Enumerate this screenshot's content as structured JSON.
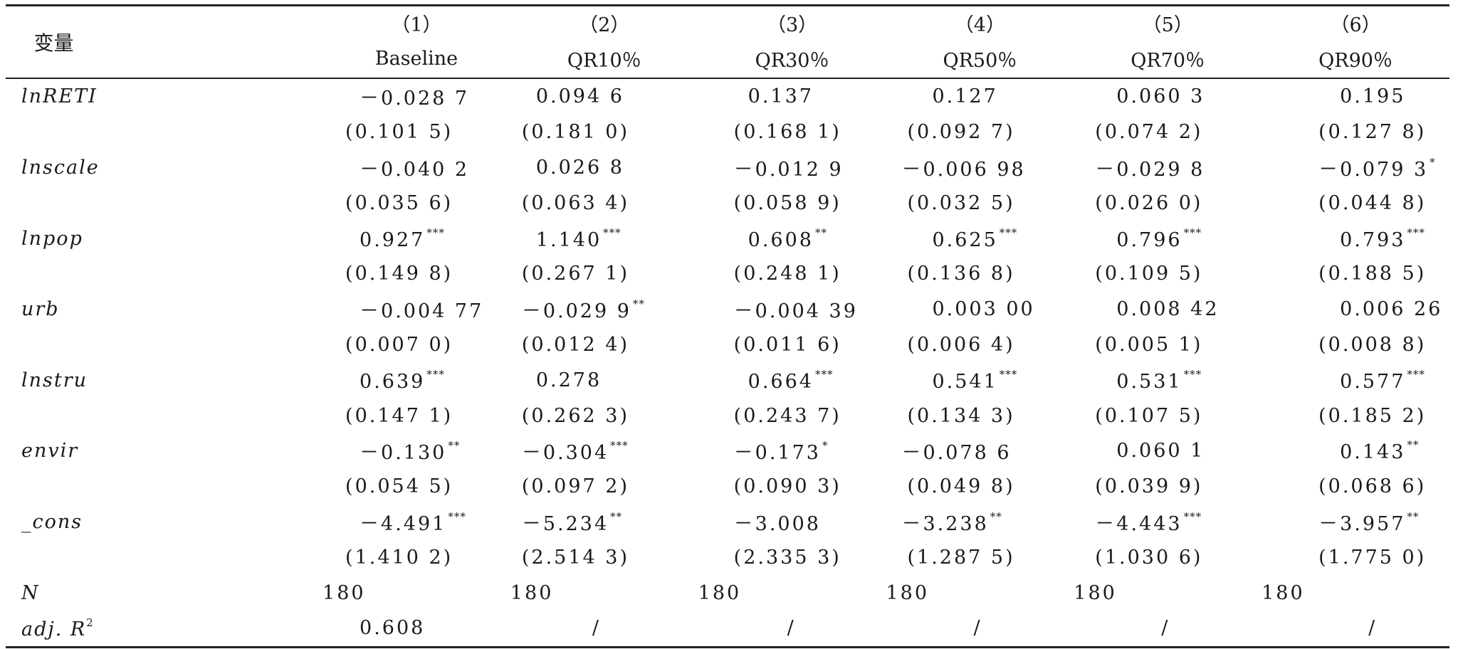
{
  "header": {
    "variable_label": "变量",
    "numbers": [
      "（1）",
      "（2）",
      "（3）",
      "（4）",
      "（5）",
      "（6）"
    ],
    "models": [
      "Baseline",
      "QR10％",
      "QR30％",
      "QR50％",
      "QR70％",
      "QR90％"
    ]
  },
  "rows": [
    {
      "label": "lnRETI",
      "cells": [
        {
          "v": "－0.028 7",
          "s": ""
        },
        {
          "v": "0.094 6",
          "s": ""
        },
        {
          "v": "0.137",
          "s": ""
        },
        {
          "v": "0.127",
          "s": ""
        },
        {
          "v": "0.060 3",
          "s": ""
        },
        {
          "v": "0.195",
          "s": ""
        }
      ]
    },
    {
      "label": "",
      "cells": [
        {
          "v": "(0.101 5)",
          "s": ""
        },
        {
          "v": "(0.181 0)",
          "s": ""
        },
        {
          "v": "(0.168 1)",
          "s": ""
        },
        {
          "v": "(0.092 7)",
          "s": ""
        },
        {
          "v": "(0.074 2)",
          "s": ""
        },
        {
          "v": "(0.127 8)",
          "s": ""
        }
      ]
    },
    {
      "label": "lnscale",
      "cells": [
        {
          "v": "－0.040 2",
          "s": ""
        },
        {
          "v": "0.026 8",
          "s": ""
        },
        {
          "v": "－0.012 9",
          "s": ""
        },
        {
          "v": "－0.006 98",
          "s": ""
        },
        {
          "v": "－0.029 8",
          "s": ""
        },
        {
          "v": "－0.079 3",
          "s": "*"
        }
      ]
    },
    {
      "label": "",
      "cells": [
        {
          "v": "(0.035 6)",
          "s": ""
        },
        {
          "v": "(0.063 4)",
          "s": ""
        },
        {
          "v": "(0.058 9)",
          "s": ""
        },
        {
          "v": "(0.032 5)",
          "s": ""
        },
        {
          "v": "(0.026 0)",
          "s": ""
        },
        {
          "v": "(0.044 8)",
          "s": ""
        }
      ]
    },
    {
      "label": "lnpop",
      "cells": [
        {
          "v": "0.927",
          "s": "***"
        },
        {
          "v": "1.140",
          "s": "***"
        },
        {
          "v": "0.608",
          "s": "**"
        },
        {
          "v": "0.625",
          "s": "***"
        },
        {
          "v": "0.796",
          "s": "***"
        },
        {
          "v": "0.793",
          "s": "***"
        }
      ]
    },
    {
      "label": "",
      "cells": [
        {
          "v": "(0.149 8)",
          "s": ""
        },
        {
          "v": "(0.267 1)",
          "s": ""
        },
        {
          "v": "(0.248 1)",
          "s": ""
        },
        {
          "v": "(0.136 8)",
          "s": ""
        },
        {
          "v": "(0.109 5)",
          "s": ""
        },
        {
          "v": "(0.188 5)",
          "s": ""
        }
      ]
    },
    {
      "label": "urb",
      "cells": [
        {
          "v": "－0.004 77",
          "s": ""
        },
        {
          "v": "－0.029 9",
          "s": "**"
        },
        {
          "v": "－0.004 39",
          "s": ""
        },
        {
          "v": "0.003 00",
          "s": ""
        },
        {
          "v": "0.008 42",
          "s": ""
        },
        {
          "v": "0.006 26",
          "s": ""
        }
      ]
    },
    {
      "label": "",
      "cells": [
        {
          "v": "(0.007 0)",
          "s": ""
        },
        {
          "v": "(0.012 4)",
          "s": ""
        },
        {
          "v": "(0.011 6)",
          "s": ""
        },
        {
          "v": "(0.006 4)",
          "s": ""
        },
        {
          "v": "(0.005 1)",
          "s": ""
        },
        {
          "v": "(0.008 8)",
          "s": ""
        }
      ]
    },
    {
      "label": "lnstru",
      "cells": [
        {
          "v": "0.639",
          "s": "***"
        },
        {
          "v": "0.278",
          "s": ""
        },
        {
          "v": "0.664",
          "s": "***"
        },
        {
          "v": "0.541",
          "s": "***"
        },
        {
          "v": "0.531",
          "s": "***"
        },
        {
          "v": "0.577",
          "s": "***"
        }
      ]
    },
    {
      "label": "",
      "cells": [
        {
          "v": "(0.147 1)",
          "s": ""
        },
        {
          "v": "(0.262 3)",
          "s": ""
        },
        {
          "v": "(0.243 7)",
          "s": ""
        },
        {
          "v": "(0.134 3)",
          "s": ""
        },
        {
          "v": "(0.107 5)",
          "s": ""
        },
        {
          "v": "(0.185 2)",
          "s": ""
        }
      ]
    },
    {
      "label": "envir",
      "cells": [
        {
          "v": "－0.130",
          "s": "**"
        },
        {
          "v": "－0.304",
          "s": "***"
        },
        {
          "v": "－0.173",
          "s": "*"
        },
        {
          "v": "－0.078 6",
          "s": ""
        },
        {
          "v": "0.060 1",
          "s": ""
        },
        {
          "v": "0.143",
          "s": "**"
        }
      ]
    },
    {
      "label": "",
      "cells": [
        {
          "v": "(0.054 5)",
          "s": ""
        },
        {
          "v": "(0.097 2)",
          "s": ""
        },
        {
          "v": "(0.090 3)",
          "s": ""
        },
        {
          "v": "(0.049 8)",
          "s": ""
        },
        {
          "v": "(0.039 9)",
          "s": ""
        },
        {
          "v": "(0.068 6)",
          "s": ""
        }
      ]
    },
    {
      "label": "_cons",
      "cells": [
        {
          "v": "－4.491",
          "s": "***"
        },
        {
          "v": "－5.234",
          "s": "**"
        },
        {
          "v": "－3.008",
          "s": ""
        },
        {
          "v": "－3.238",
          "s": "**"
        },
        {
          "v": "－4.443",
          "s": "***"
        },
        {
          "v": "－3.957",
          "s": "**"
        }
      ]
    },
    {
      "label": "",
      "cells": [
        {
          "v": "(1.410 2)",
          "s": ""
        },
        {
          "v": "(2.514 3)",
          "s": ""
        },
        {
          "v": "(2.335 3)",
          "s": ""
        },
        {
          "v": "(1.287 5)",
          "s": ""
        },
        {
          "v": "(1.030 6)",
          "s": ""
        },
        {
          "v": "(1.775 0)",
          "s": ""
        }
      ]
    },
    {
      "label": "N",
      "cells": [
        {
          "v": "180",
          "s": ""
        },
        {
          "v": "180",
          "s": ""
        },
        {
          "v": "180",
          "s": ""
        },
        {
          "v": "180",
          "s": ""
        },
        {
          "v": "180",
          "s": ""
        },
        {
          "v": "180",
          "s": ""
        }
      ]
    }
  ],
  "adj_r2_row": {
    "label_prefix": "adj. R",
    "label_exp": "2",
    "cells": [
      "0.608",
      "/",
      "/",
      "/",
      "/",
      "/"
    ]
  }
}
